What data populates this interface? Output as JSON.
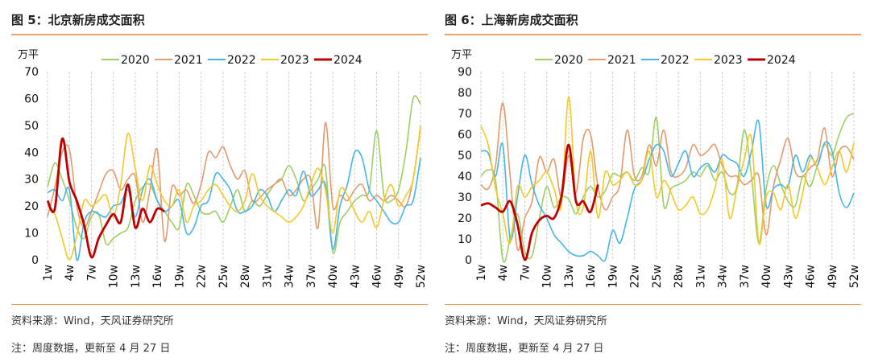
{
  "colors": {
    "2020": "#9dcf63",
    "2021": "#e39a6c",
    "2022": "#45b5e8",
    "2023": "#f5c827",
    "2024": "#c00000",
    "rule": "#e8a46b",
    "grid": "#cfcfcf"
  },
  "figures": [
    {
      "title": "图 5：北京新房成交面积",
      "source": "资料来源：Wind，天风证券研究所",
      "note": "注：周度数据，更新至 4 月 27 日"
    },
    {
      "title": "图 6：上海新房成交面积",
      "source": "资料来源：Wind，天风证券研究所",
      "note": "注：周度数据，更新至 4 月 27 日"
    }
  ],
  "chart_data": [
    {
      "type": "line",
      "title": "",
      "ylabel": "万平",
      "ylim": [
        0,
        70
      ],
      "yticks": [
        "0",
        "10",
        "20",
        "30",
        "40",
        "50",
        "60",
        "70"
      ],
      "xticks": [
        "1w",
        "4w",
        "7w",
        "10w",
        "13w",
        "16w",
        "19w",
        "22w",
        "25w",
        "28w",
        "31w",
        "34w",
        "37w",
        "40w",
        "43w",
        "46w",
        "49w",
        "52w"
      ],
      "grid": "vertical",
      "legend": "top",
      "series": [
        {
          "name": "2020",
          "x": [
            1,
            2,
            3,
            4,
            5,
            6,
            7,
            8,
            9,
            10,
            11,
            12,
            13,
            14,
            15,
            16,
            17,
            18,
            19,
            20,
            21,
            22,
            23,
            24,
            25,
            26,
            27,
            28,
            29,
            30,
            31,
            32,
            33,
            34,
            35,
            36,
            37,
            38,
            39,
            40,
            41,
            42,
            43,
            44,
            45,
            46,
            47,
            48,
            49,
            50,
            51,
            52
          ],
          "values": [
            27,
            36,
            30,
            22,
            12,
            8,
            16,
            17,
            6,
            8,
            10,
            12,
            22,
            27,
            28,
            22,
            18,
            14,
            12,
            28,
            24,
            18,
            17,
            18,
            14,
            20,
            26,
            18,
            22,
            20,
            24,
            28,
            30,
            35,
            30,
            22,
            26,
            30,
            34,
            3,
            14,
            18,
            22,
            24,
            26,
            48,
            24,
            22,
            26,
            40,
            60,
            58
          ]
        },
        {
          "name": "2021",
          "x": [
            1,
            2,
            3,
            4,
            5,
            6,
            7,
            8,
            9,
            10,
            11,
            12,
            13,
            14,
            15,
            16,
            17,
            18,
            19,
            20,
            21,
            22,
            23,
            24,
            25,
            26,
            27,
            28,
            29,
            30,
            31,
            32,
            33,
            34,
            35,
            36,
            37,
            38,
            39,
            40,
            41,
            42,
            43,
            44,
            45,
            46,
            47,
            48,
            49,
            50,
            51,
            52
          ],
          "values": [
            16,
            27,
            40,
            41,
            20,
            12,
            18,
            25,
            32,
            33,
            26,
            30,
            31,
            14,
            26,
            41,
            7,
            27,
            24,
            26,
            21,
            28,
            40,
            38,
            42,
            35,
            30,
            33,
            22,
            23,
            26,
            28,
            30,
            24,
            26,
            30,
            30,
            12,
            51,
            20,
            24,
            22,
            26,
            28,
            22,
            24,
            22,
            24,
            22,
            20,
            30,
            49
          ]
        },
        {
          "name": "2022",
          "x": [
            1,
            2,
            3,
            4,
            5,
            6,
            7,
            8,
            9,
            10,
            11,
            12,
            13,
            14,
            15,
            16,
            17,
            18,
            19,
            20,
            21,
            22,
            23,
            24,
            25,
            26,
            27,
            28,
            29,
            30,
            31,
            32,
            33,
            34,
            35,
            36,
            37,
            38,
            39,
            40,
            41,
            42,
            43,
            44,
            45,
            46,
            47,
            48,
            49,
            50,
            51,
            52
          ],
          "values": [
            25,
            26,
            22,
            26,
            0,
            14,
            18,
            17,
            16,
            20,
            21,
            26,
            16,
            26,
            30,
            22,
            18,
            20,
            22,
            10,
            12,
            20,
            22,
            32,
            30,
            26,
            18,
            18,
            20,
            26,
            24,
            18,
            22,
            26,
            24,
            33,
            24,
            26,
            28,
            4,
            20,
            28,
            40,
            38,
            26,
            22,
            18,
            14,
            14,
            20,
            22,
            38
          ]
        },
        {
          "name": "2023",
          "x": [
            1,
            2,
            3,
            4,
            5,
            6,
            7,
            8,
            9,
            10,
            11,
            12,
            13,
            14,
            15,
            16,
            17,
            18,
            19,
            20,
            21,
            22,
            23,
            24,
            25,
            26,
            27,
            28,
            29,
            30,
            31,
            32,
            33,
            34,
            35,
            36,
            37,
            38,
            39,
            40,
            41,
            42,
            43,
            44,
            45,
            46,
            47,
            48,
            49,
            50,
            51,
            52
          ],
          "values": [
            20,
            17,
            8,
            0,
            9,
            22,
            20,
            22,
            24,
            16,
            28,
            47,
            34,
            22,
            35,
            28,
            22,
            20,
            26,
            14,
            20,
            22,
            26,
            28,
            24,
            20,
            18,
            22,
            32,
            24,
            20,
            18,
            16,
            14,
            16,
            20,
            28,
            34,
            26,
            10,
            26,
            24,
            18,
            14,
            18,
            12,
            22,
            28,
            20,
            24,
            30,
            50
          ]
        },
        {
          "name": "2024",
          "x": [
            1,
            2,
            3,
            4,
            5,
            6,
            7,
            8,
            9,
            10,
            11,
            12,
            13,
            14,
            15,
            16,
            17
          ],
          "values": [
            22,
            19,
            45,
            29,
            22,
            13,
            1,
            8,
            13,
            17,
            14,
            28,
            12,
            19,
            14,
            19,
            18
          ]
        }
      ]
    },
    {
      "type": "line",
      "title": "",
      "ylabel": "万平",
      "ylim": [
        0,
        90
      ],
      "yticks": [
        "0",
        "10",
        "20",
        "30",
        "40",
        "50",
        "60",
        "70",
        "80",
        "90"
      ],
      "xticks": [
        "1w",
        "4w",
        "7w",
        "10w",
        "13w",
        "16w",
        "19w",
        "22w",
        "25w",
        "28w",
        "31w",
        "34w",
        "37w",
        "40w",
        "43w",
        "46w",
        "49w",
        "52w"
      ],
      "grid": "vertical",
      "legend": "top",
      "series": [
        {
          "name": "2020",
          "x": [
            1,
            2,
            3,
            4,
            5,
            6,
            7,
            8,
            9,
            10,
            11,
            12,
            13,
            14,
            15,
            16,
            17,
            18,
            19,
            20,
            21,
            22,
            23,
            24,
            25,
            26,
            27,
            28,
            29,
            30,
            31,
            32,
            33,
            34,
            35,
            36,
            37,
            38,
            39,
            40,
            41,
            42,
            43,
            44,
            45,
            46,
            47,
            48,
            49,
            50,
            51,
            52
          ],
          "values": [
            40,
            43,
            38,
            0,
            10,
            22,
            4,
            2,
            20,
            35,
            25,
            30,
            29,
            22,
            30,
            35,
            30,
            33,
            41,
            40,
            42,
            38,
            44,
            42,
            68,
            26,
            34,
            36,
            38,
            42,
            40,
            45,
            38,
            42,
            32,
            35,
            62,
            40,
            8,
            34,
            45,
            36,
            28,
            26,
            40,
            35,
            45,
            55,
            50,
            60,
            68,
            70
          ]
        },
        {
          "name": "2021",
          "x": [
            1,
            2,
            3,
            4,
            5,
            6,
            7,
            8,
            9,
            10,
            11,
            12,
            13,
            14,
            15,
            16,
            17,
            18,
            19,
            20,
            21,
            22,
            23,
            24,
            25,
            26,
            27,
            28,
            29,
            30,
            31,
            32,
            33,
            34,
            35,
            36,
            37,
            38,
            39,
            40,
            41,
            42,
            43,
            44,
            45,
            46,
            47,
            48,
            49,
            50,
            51,
            52
          ],
          "values": [
            36,
            34,
            45,
            75,
            40,
            5,
            20,
            28,
            49,
            42,
            48,
            30,
            50,
            32,
            58,
            60,
            35,
            24,
            30,
            36,
            62,
            40,
            40,
            55,
            45,
            62,
            42,
            40,
            44,
            55,
            50,
            52,
            55,
            45,
            40,
            40,
            36,
            38,
            40,
            12,
            35,
            48,
            58,
            42,
            40,
            44,
            48,
            63,
            40,
            52,
            54,
            48
          ]
        },
        {
          "name": "2022",
          "x": [
            1,
            2,
            3,
            4,
            5,
            6,
            7,
            8,
            9,
            10,
            11,
            12,
            13,
            14,
            15,
            16,
            17,
            18,
            19,
            20,
            21,
            22,
            23,
            24,
            25,
            26,
            27,
            28,
            29,
            30,
            31,
            32,
            33,
            34,
            35,
            36,
            37,
            38,
            39,
            40,
            41,
            42,
            43,
            44,
            45,
            46,
            47,
            48,
            49,
            50,
            51,
            52
          ],
          "values": [
            52,
            51,
            40,
            55,
            10,
            30,
            50,
            36,
            26,
            20,
            12,
            8,
            4,
            2,
            2,
            4,
            2,
            0,
            14,
            8,
            20,
            34,
            38,
            48,
            55,
            52,
            40,
            46,
            52,
            40,
            44,
            46,
            42,
            50,
            48,
            46,
            40,
            52,
            66,
            26,
            34,
            36,
            35,
            50,
            42,
            50,
            45,
            56,
            52,
            32,
            25,
            32
          ]
        },
        {
          "name": "2023",
          "x": [
            1,
            2,
            3,
            4,
            5,
            6,
            7,
            8,
            9,
            10,
            11,
            12,
            13,
            14,
            15,
            16,
            17,
            18,
            19,
            20,
            21,
            22,
            23,
            24,
            25,
            26,
            27,
            28,
            29,
            30,
            31,
            32,
            33,
            34,
            35,
            36,
            37,
            38,
            39,
            40,
            41,
            42,
            43,
            44,
            45,
            46,
            47,
            48,
            49,
            50,
            51,
            52
          ],
          "values": [
            64,
            55,
            34,
            22,
            8,
            35,
            30,
            35,
            38,
            42,
            34,
            26,
            78,
            28,
            25,
            52,
            20,
            42,
            36,
            38,
            42,
            36,
            38,
            52,
            30,
            38,
            32,
            24,
            26,
            30,
            22,
            24,
            34,
            48,
            20,
            34,
            48,
            58,
            8,
            30,
            32,
            24,
            36,
            20,
            32,
            48,
            44,
            36,
            44,
            52,
            42,
            56
          ]
        },
        {
          "name": "2024",
          "x": [
            1,
            2,
            3,
            4,
            5,
            6,
            7,
            8,
            9,
            10,
            11,
            12,
            13,
            14,
            15,
            16,
            17
          ],
          "values": [
            26,
            27,
            25,
            23,
            28,
            17,
            0,
            13,
            19,
            21,
            20,
            30,
            55,
            28,
            28,
            23,
            36
          ]
        }
      ]
    }
  ]
}
